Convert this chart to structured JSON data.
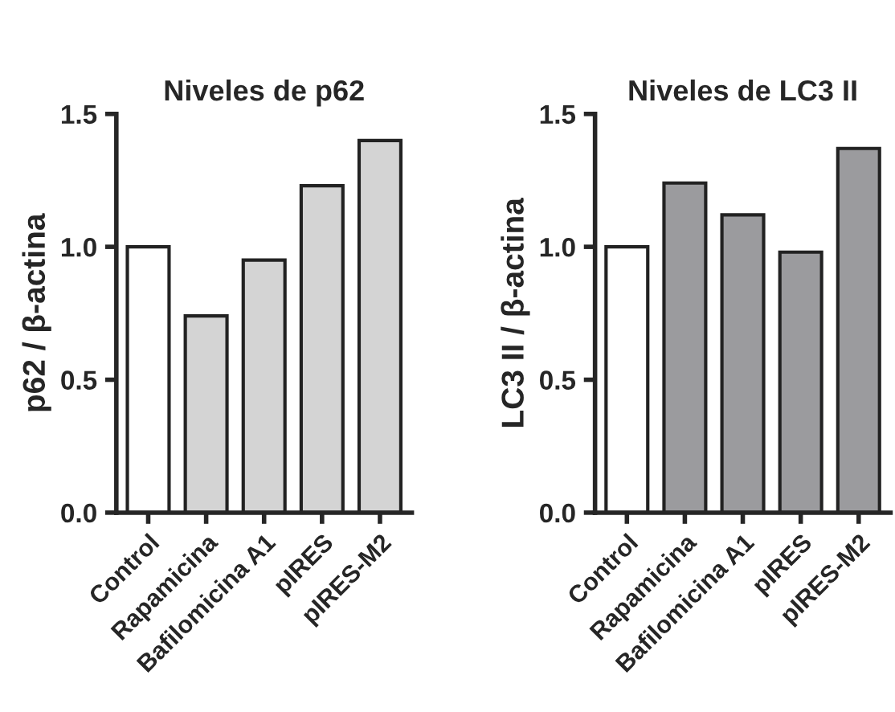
{
  "chart_data": [
    {
      "type": "bar",
      "title": "Niveles de p62",
      "ylabel": "p62 / β-actina",
      "categories": [
        "Control",
        "Rapamicina",
        "Bafilomicina A1",
        "pIRES",
        "pIRES-M2"
      ],
      "values": [
        1.0,
        0.74,
        0.95,
        1.23,
        1.4
      ],
      "colors": [
        "#ffffff",
        "#d4d4d4",
        "#d4d4d4",
        "#d4d4d4",
        "#d4d4d4"
      ],
      "ylim": [
        0,
        1.5
      ],
      "yticks": [
        {
          "value": 0,
          "label": "0.0"
        },
        {
          "value": 0.5,
          "label": "0.5"
        },
        {
          "value": 1.0,
          "label": "1.0"
        },
        {
          "value": 1.5,
          "label": "1.5"
        }
      ],
      "grid": false,
      "legend": false
    },
    {
      "type": "bar",
      "title": "Niveles de LC3 II",
      "ylabel": "LC3 II / β-actina",
      "categories": [
        "Control",
        "Rapamicina",
        "Bafilomicina A1",
        "pIRES",
        "pIRES-M2"
      ],
      "values": [
        1.0,
        1.24,
        1.12,
        0.98,
        1.37
      ],
      "colors": [
        "#ffffff",
        "#9b9b9e",
        "#9b9b9e",
        "#9b9b9e",
        "#9b9b9e"
      ],
      "ylim": [
        0,
        1.5
      ],
      "yticks": [
        {
          "value": 0,
          "label": "0.0"
        },
        {
          "value": 0.5,
          "label": "0.5"
        },
        {
          "value": 1.0,
          "label": "1.0"
        },
        {
          "value": 1.5,
          "label": "1.5"
        }
      ],
      "grid": false,
      "legend": false
    }
  ]
}
